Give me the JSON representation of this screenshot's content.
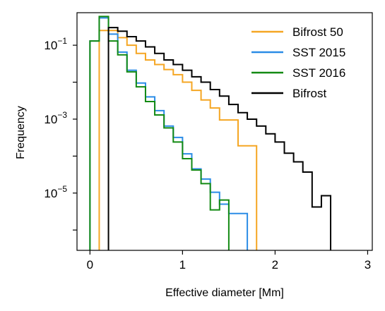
{
  "chart_data": {
    "type": "histogram-step",
    "xlabel": "Effective diameter [Mm]",
    "ylabel": "Frequency",
    "xlim": [
      -0.14,
      3.05
    ],
    "ylim_log10": [
      -6.55,
      -0.12
    ],
    "y_scale": "log",
    "x_ticks": [
      0,
      1,
      2,
      3
    ],
    "x_tick_labels": [
      "0",
      "1",
      "2",
      "3"
    ],
    "y_ticks_log10": [
      -1,
      -3,
      -5
    ],
    "y_tick_labels": [
      {
        "base": "10",
        "exp": "−1"
      },
      {
        "base": "10",
        "exp": "−3"
      },
      {
        "base": "10",
        "exp": "−5"
      }
    ],
    "legend_position": "top-right",
    "series": [
      {
        "name": "Bifrost 50",
        "color": "#f5a623",
        "bin_edges": [
          0.1,
          0.2,
          0.3,
          0.4,
          0.5,
          0.6,
          0.7,
          0.8,
          0.9,
          1.0,
          1.1,
          1.2,
          1.3,
          1.4,
          1.5,
          1.6,
          1.7,
          1.8
        ],
        "values": [
          0.25,
          0.25,
          0.16,
          0.1,
          0.06,
          0.04,
          0.03,
          0.022,
          0.016,
          0.01,
          0.006,
          0.0033,
          0.002,
          0.00095,
          0.00095,
          0.00019,
          0.00019
        ]
      },
      {
        "name": "SST 2015",
        "color": "#2b8ce6",
        "bin_edges": [
          0.0,
          0.1,
          0.2,
          0.3,
          0.4,
          0.5,
          0.6,
          0.7,
          0.8,
          0.9,
          1.0,
          1.1,
          1.2,
          1.3,
          1.4,
          1.5,
          1.6,
          1.7
        ],
        "values": [
          0.13,
          0.55,
          0.2,
          0.065,
          0.021,
          0.0095,
          0.004,
          0.0017,
          0.00065,
          0.00032,
          0.000115,
          4.5e-05,
          2.4e-05,
          1.05e-05,
          5e-06,
          2.8e-06,
          2.8e-06
        ]
      },
      {
        "name": "SST 2016",
        "color": "#138a13",
        "bin_edges": [
          0.0,
          0.1,
          0.2,
          0.3,
          0.4,
          0.5,
          0.6,
          0.7,
          0.8,
          0.9,
          1.0,
          1.1,
          1.2,
          1.3,
          1.4,
          1.5
        ],
        "values": [
          0.13,
          0.6,
          0.13,
          0.055,
          0.019,
          0.0075,
          0.003,
          0.0013,
          0.00058,
          0.00024,
          8.5e-05,
          4.2e-05,
          1.8e-05,
          3.5e-06,
          6.5e-06
        ]
      },
      {
        "name": "Bifrost",
        "color": "#000000",
        "bin_edges": [
          0.2,
          0.3,
          0.4,
          0.5,
          0.6,
          0.7,
          0.8,
          0.9,
          1.0,
          1.1,
          1.2,
          1.3,
          1.4,
          1.5,
          1.6,
          1.7,
          1.8,
          1.9,
          2.0,
          2.1,
          2.2,
          2.3,
          2.4,
          2.5,
          2.6
        ],
        "values": [
          0.3,
          0.24,
          0.17,
          0.13,
          0.09,
          0.06,
          0.04,
          0.03,
          0.021,
          0.014,
          0.01,
          0.0063,
          0.0042,
          0.0025,
          0.0015,
          0.001,
          0.00065,
          0.0004,
          0.00024,
          0.00012,
          7e-05,
          3.7e-05,
          4.2e-06,
          8.5e-06
        ]
      }
    ]
  }
}
